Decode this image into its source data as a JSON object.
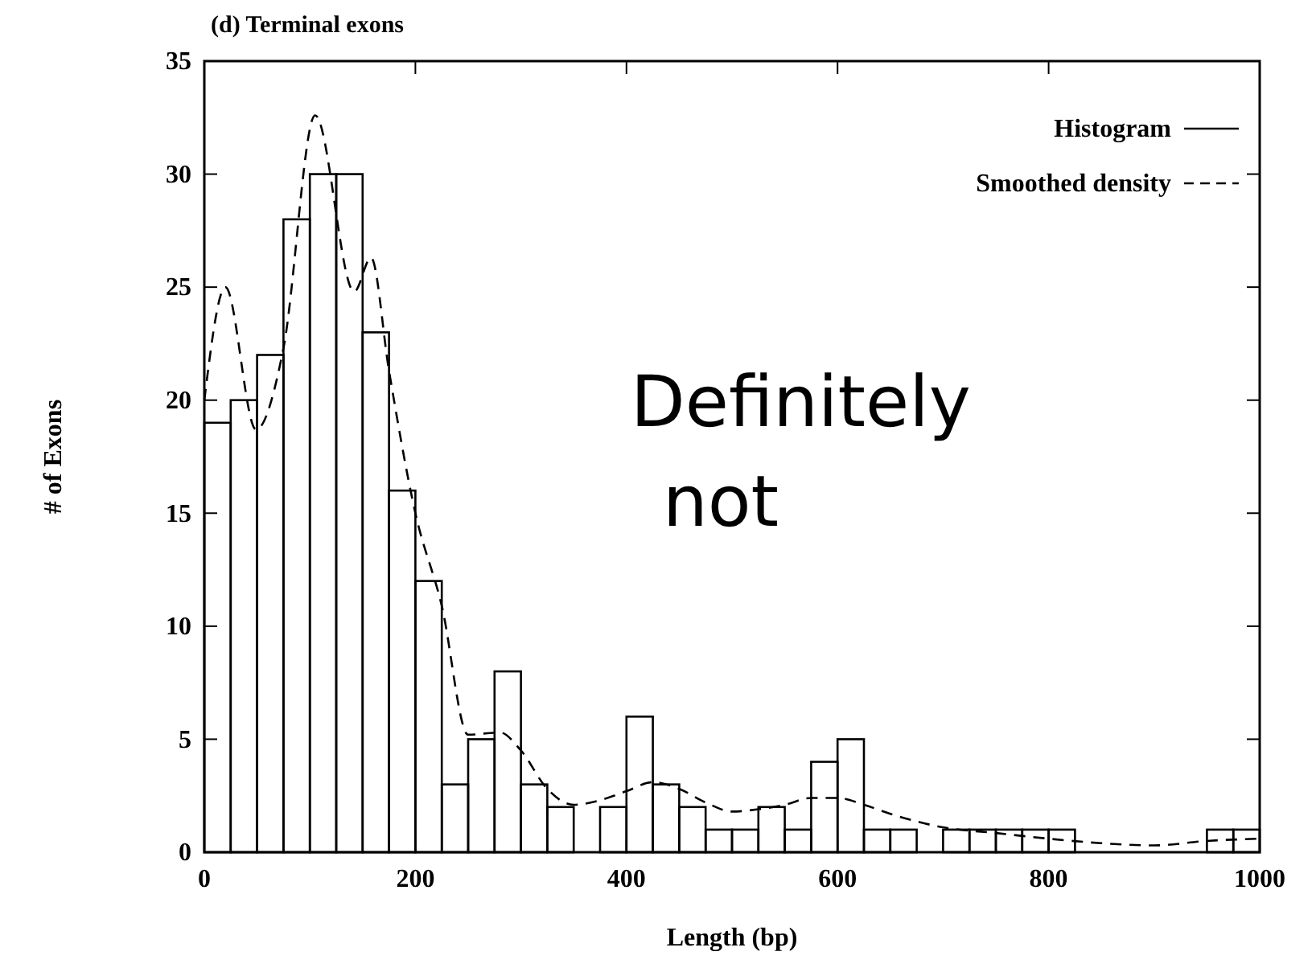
{
  "chart_data": {
    "type": "histogram",
    "title": "(d) Terminal exons",
    "xlabel": "Length (bp)",
    "ylabel": "# of Exons",
    "xlim": [
      0,
      1000
    ],
    "xticks": [
      0,
      200,
      400,
      600,
      800,
      1000
    ],
    "ylim": [
      0,
      35
    ],
    "yticks": [
      0,
      5,
      10,
      15,
      20,
      25,
      30,
      35
    ],
    "grid": false,
    "legend": "top right",
    "annotations": [
      "Definitely not"
    ],
    "series": [
      {
        "name": "Histogram",
        "color": "#000000",
        "line_style": "solid",
        "bins": [
          0,
          25,
          50,
          75,
          100,
          125,
          150,
          175,
          200,
          225,
          250,
          275,
          300,
          325,
          350,
          375,
          400,
          425,
          450,
          475,
          500,
          525,
          550,
          575,
          600,
          625,
          650,
          675,
          700,
          725,
          750,
          775,
          800,
          825,
          850,
          875,
          900,
          925,
          950,
          975,
          1000
        ],
        "values": [
          19,
          20,
          22,
          28,
          30,
          30,
          23,
          16,
          12,
          3,
          5,
          8,
          3,
          2,
          0,
          2,
          6,
          3,
          2,
          1,
          1,
          2,
          1,
          4,
          5,
          1,
          1,
          0,
          1,
          1,
          1,
          1,
          1,
          0,
          0,
          0,
          0,
          0,
          1,
          1
        ]
      },
      {
        "name": "Smoothed density",
        "type": "line",
        "color": "#000000",
        "line_style": "dashed",
        "x": [
          0,
          20,
          49,
          75,
          105,
          142,
          158,
          175,
          200,
          225,
          250,
          280,
          300,
          325,
          350,
          375,
          400,
          425,
          450,
          475,
          500,
          525,
          550,
          575,
          600,
          625,
          650,
          700,
          750,
          800,
          850,
          900,
          950,
          1000
        ],
        "values": [
          20,
          25,
          18.7,
          22.3,
          32.6,
          24.8,
          26.3,
          21.3,
          15,
          10.9,
          5.2,
          5.3,
          4.5,
          2.8,
          2.1,
          2.3,
          2.7,
          3.1,
          2.8,
          2.2,
          1.8,
          1.9,
          2.1,
          2.4,
          2.4,
          2.1,
          1.7,
          1.1,
          0.85,
          0.6,
          0.4,
          0.3,
          0.5,
          0.6
        ]
      }
    ]
  }
}
